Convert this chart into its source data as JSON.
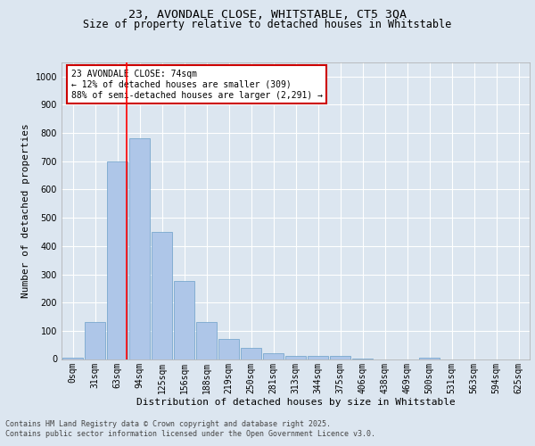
{
  "title_line1": "23, AVONDALE CLOSE, WHITSTABLE, CT5 3QA",
  "title_line2": "Size of property relative to detached houses in Whitstable",
  "xlabel": "Distribution of detached houses by size in Whitstable",
  "ylabel": "Number of detached properties",
  "bin_labels": [
    "0sqm",
    "31sqm",
    "63sqm",
    "94sqm",
    "125sqm",
    "156sqm",
    "188sqm",
    "219sqm",
    "250sqm",
    "281sqm",
    "313sqm",
    "344sqm",
    "375sqm",
    "406sqm",
    "438sqm",
    "469sqm",
    "500sqm",
    "531sqm",
    "563sqm",
    "594sqm",
    "625sqm"
  ],
  "bar_values": [
    5,
    130,
    700,
    780,
    450,
    275,
    130,
    70,
    38,
    22,
    12,
    10,
    10,
    3,
    0,
    0,
    5,
    0,
    0,
    0,
    0
  ],
  "bar_color": "#aec6e8",
  "bar_edge_color": "#6a9fc8",
  "red_line_x": 2.42,
  "ylim": [
    0,
    1050
  ],
  "yticks": [
    0,
    100,
    200,
    300,
    400,
    500,
    600,
    700,
    800,
    900,
    1000
  ],
  "annotation_text": "23 AVONDALE CLOSE: 74sqm\n← 12% of detached houses are smaller (309)\n88% of semi-detached houses are larger (2,291) →",
  "annotation_box_facecolor": "#ffffff",
  "annotation_box_edgecolor": "#cc0000",
  "footer_line1": "Contains HM Land Registry data © Crown copyright and database right 2025.",
  "footer_line2": "Contains public sector information licensed under the Open Government Licence v3.0.",
  "background_color": "#dce6f0",
  "plot_background": "#dce6f0",
  "grid_color": "#ffffff",
  "title_fontsize": 9.5,
  "subtitle_fontsize": 8.5,
  "ylabel_fontsize": 8,
  "xlabel_fontsize": 8,
  "tick_fontsize": 7,
  "annotation_fontsize": 7,
  "footer_fontsize": 6
}
